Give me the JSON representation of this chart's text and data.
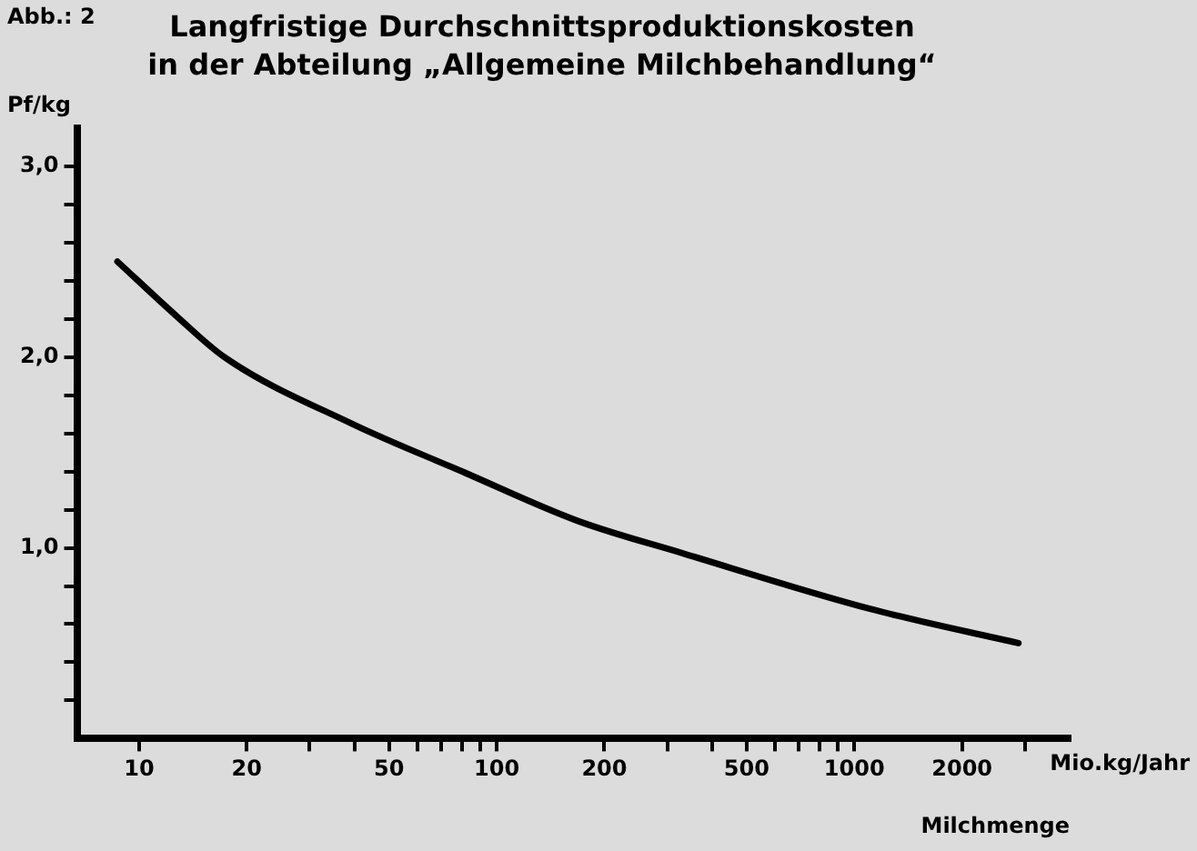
{
  "chart_data": {
    "type": "line",
    "title": "Langfristige Durchschnittsproduktionskosten",
    "subtitle": "in der Abteilung „Allgemeine Milchbehandlung“",
    "ylabel": "Pf/kg",
    "xlabel": "Milchmenge",
    "annotations": [
      "Abb.: 2",
      "Mio.kg/Jahr"
    ],
    "log": "x",
    "grid": false,
    "marker": "none",
    "line_style": "solid",
    "xlim": [
      6.7,
      4000
    ],
    "ylim": [
      0,
      3.2
    ],
    "xticks": [
      10,
      20,
      {
        "value": 30,
        "label": null
      },
      {
        "value": 40,
        "label": null
      },
      50,
      {
        "value": 60,
        "label": null
      },
      {
        "value": 70,
        "label": null
      },
      {
        "value": 80,
        "label": null
      },
      {
        "value": 90,
        "label": null
      },
      100,
      200,
      {
        "value": 300,
        "label": null
      },
      {
        "value": 400,
        "label": null
      },
      500,
      {
        "value": 600,
        "label": null
      },
      {
        "value": 700,
        "label": null
      },
      {
        "value": 800,
        "label": null
      },
      {
        "value": 900,
        "label": null
      },
      1000,
      2000,
      {
        "value": 3000,
        "label": null
      }
    ],
    "yticks": [
      {
        "value": 0.2,
        "label": null
      },
      {
        "value": 0.4,
        "label": null
      },
      {
        "value": 0.6,
        "label": null
      },
      {
        "value": 0.8,
        "label": null
      },
      {
        "value": 1,
        "label": "1,0"
      },
      {
        "value": 1.2,
        "label": null
      },
      {
        "value": 1.4,
        "label": null
      },
      {
        "value": 1.6,
        "label": null
      },
      {
        "value": 1.8,
        "label": null
      },
      {
        "value": 2,
        "label": "2,0"
      },
      {
        "value": 2.2,
        "label": null
      },
      {
        "value": 2.4,
        "label": null
      },
      {
        "value": 2.6,
        "label": null
      },
      {
        "value": 2.8,
        "label": null
      },
      {
        "value": 3,
        "label": "3,0"
      }
    ],
    "series": [
      {
        "color": "#000000",
        "x": [
          8.7,
          12.8,
          17.3,
          39.4,
          80,
          169,
          333,
          1107,
          2877
        ],
        "values": [
          2.5,
          2.21,
          2.0,
          1.65,
          1.4,
          1.14,
          0.97,
          0.68,
          0.5
        ]
      }
    ]
  }
}
